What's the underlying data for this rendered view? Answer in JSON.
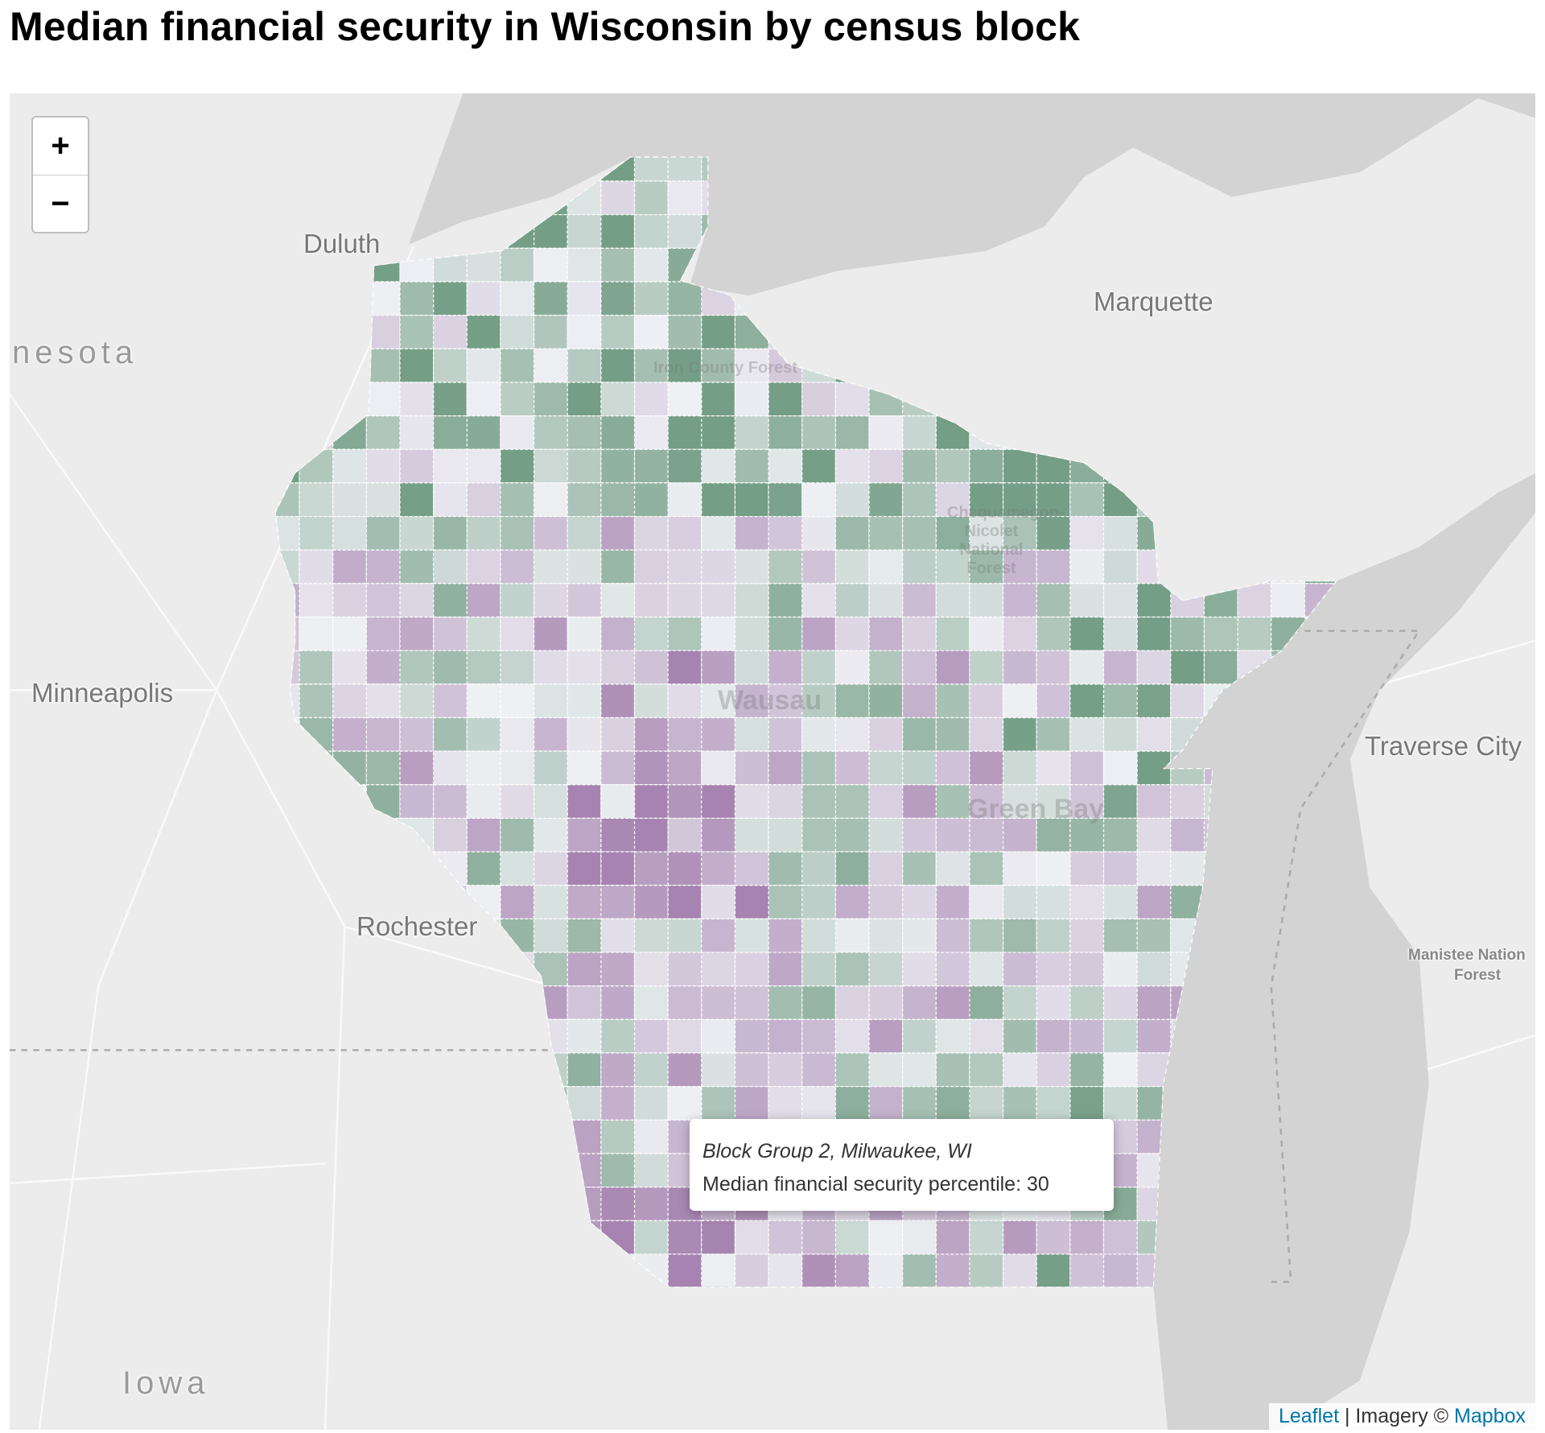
{
  "title": "Median financial security in Wisconsin by census block",
  "zoom_controls": {
    "zoom_in": "+",
    "zoom_out": "−"
  },
  "places": {
    "duluth": "Duluth",
    "marquette": "Marquette",
    "minnesota": "nesota",
    "minneapolis": "Minneapolis",
    "traverse_city": "Traverse City",
    "rochester": "Rochester",
    "iowa": "Iowa",
    "manistee_1": "Manistee Nation",
    "manistee_2": "Forest",
    "iron_county": "Iron County Forest",
    "chequamegon": "Chequamegon-Nicolet National Forest",
    "wausau": "Wausau",
    "green_bay": "Green Bay"
  },
  "tooltip": {
    "name": "Block Group 2, Milwaukee, WI",
    "label": "Median financial security percentile: 30"
  },
  "attribution": {
    "leaflet": "Leaflet",
    "separator": " | Imagery © ",
    "mapbox": "Mapbox"
  },
  "colors": {
    "land": "#ececec",
    "water": "#d3d3d3",
    "high_security": "#5e8f72",
    "low_security": "#8e5f99",
    "neutral": "#eef0f4"
  }
}
